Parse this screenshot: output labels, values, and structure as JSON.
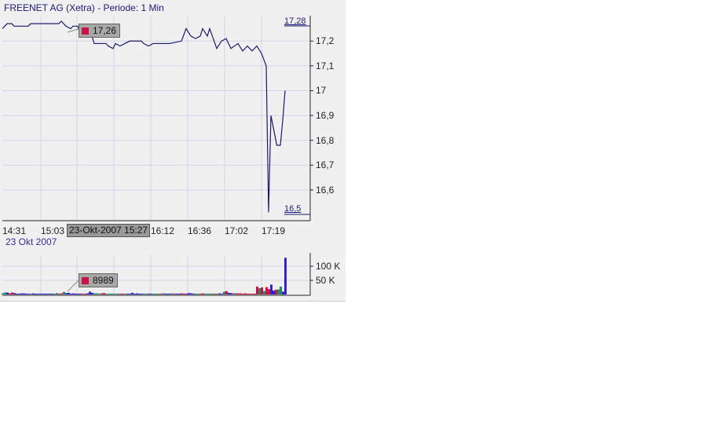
{
  "title": "FREENET AG (Xetra) - Periode: 1 Min",
  "date_label": "23 Okt 2007",
  "crosshair_time": "23-Okt-2007 15:27",
  "price_tooltip": "17,26",
  "volume_tooltip": "8989",
  "colors": {
    "line": "#1a1a6e",
    "up": "#228866",
    "down": "#cc1144",
    "neutral": "#3322cc",
    "grid": "#d4d4e8",
    "tooltip_marker": "#cc1144"
  },
  "chart_data": [
    {
      "type": "line",
      "title": "FREENET AG (Xetra) - Periode: 1 Min",
      "ylim": [
        16.5,
        17.28
      ],
      "y_ticks": [
        "17,2",
        "17,1",
        "17",
        "16,9",
        "16,8",
        "16,7",
        "16,6"
      ],
      "y_high_label": "17,28",
      "y_low_label": "16,5",
      "x_ticks": [
        {
          "i": 0,
          "label": "14:31"
        },
        {
          "i": 16,
          "label": "15:03"
        },
        {
          "i": 63,
          "label": "16:12"
        },
        {
          "i": 79,
          "label": "16:36"
        },
        {
          "i": 94,
          "label": "17:02"
        },
        {
          "i": 110,
          "label": "17:19"
        }
      ],
      "grid": true,
      "points": [
        [
          0,
          17.25
        ],
        [
          2,
          17.27
        ],
        [
          4,
          17.27
        ],
        [
          5,
          17.26
        ],
        [
          11,
          17.26
        ],
        [
          12,
          17.27
        ],
        [
          24,
          17.27
        ],
        [
          25,
          17.28
        ],
        [
          27,
          17.26
        ],
        [
          29,
          17.25
        ],
        [
          30,
          17.26
        ],
        [
          32,
          17.26
        ],
        [
          33,
          17.23
        ],
        [
          35,
          17.22
        ],
        [
          38,
          17.22
        ],
        [
          39,
          17.19
        ],
        [
          44,
          17.19
        ],
        [
          45,
          17.18
        ],
        [
          47,
          17.17
        ],
        [
          48,
          17.19
        ],
        [
          50,
          17.18
        ],
        [
          52,
          17.19
        ],
        [
          54,
          17.2
        ],
        [
          59,
          17.2
        ],
        [
          60,
          17.19
        ],
        [
          62,
          17.18
        ],
        [
          64,
          17.19
        ],
        [
          69,
          17.19
        ],
        [
          71,
          17.19
        ],
        [
          76,
          17.2
        ],
        [
          78,
          17.25
        ],
        [
          80,
          17.22
        ],
        [
          82,
          17.21
        ],
        [
          84,
          17.22
        ],
        [
          85,
          17.25
        ],
        [
          87,
          17.22
        ],
        [
          88,
          17.25
        ],
        [
          91,
          17.17
        ],
        [
          93,
          17.2
        ],
        [
          95,
          17.21
        ],
        [
          97,
          17.17
        ],
        [
          100,
          17.19
        ],
        [
          102,
          17.16
        ],
        [
          104,
          17.18
        ],
        [
          106,
          17.16
        ],
        [
          108,
          17.18
        ],
        [
          110,
          17.15
        ],
        [
          112,
          17.1
        ],
        [
          113,
          16.51
        ],
        [
          114,
          16.9
        ],
        [
          116.5,
          16.78
        ],
        [
          118,
          16.78
        ],
        [
          119,
          16.88
        ],
        [
          120,
          17.0
        ]
      ]
    },
    {
      "type": "bar",
      "ylim": [
        0,
        130000
      ],
      "y_ticks": [
        "100 K",
        "50 K"
      ],
      "values": [
        4000,
        7000,
        7000,
        4000,
        7000,
        5000,
        3000,
        3000,
        4000,
        4000,
        3000,
        3000,
        3000,
        4000,
        3000,
        3000,
        3000,
        3000,
        3000,
        3000,
        3000,
        3000,
        3000,
        5000,
        3000,
        4000,
        8989,
        5000,
        6000,
        3000,
        4000,
        3000,
        3000,
        3000,
        3000,
        3000,
        4000,
        10000,
        6000,
        4000,
        4000,
        3000,
        4000,
        5000,
        3000,
        3000,
        3000,
        3000,
        3000,
        3000,
        3000,
        3000,
        3000,
        3000,
        3000,
        6000,
        3000,
        4000,
        3000,
        3000,
        3000,
        3000,
        3000,
        3000,
        3000,
        3000,
        3000,
        3000,
        4000,
        3000,
        3000,
        3000,
        4000,
        3000,
        3000,
        3000,
        4000,
        3000,
        3000,
        5000,
        4000,
        3000,
        3000,
        3000,
        3000,
        4000,
        3000,
        3000,
        3000,
        3000,
        3000,
        3000,
        4000,
        3000,
        10000,
        12000,
        6000,
        5000,
        4000,
        4000,
        4000,
        4000,
        3000,
        4000,
        3000,
        3000,
        3000,
        3000,
        28000,
        22000,
        25000,
        12000,
        26000,
        19000,
        35000,
        14000,
        17000,
        18000,
        28000,
        10000,
        130000
      ],
      "colors": "ggbrrbbbbbbbgbbbbbbbbbggrrgbbbbbbbrrbbbgggrrggggggrrgbbbbbbbggbbgggrgbbbgrbbrrbbbbggrrggggrgbbgrbbgrrrrrrrrrrgrgrrbbrgg"
    }
  ]
}
